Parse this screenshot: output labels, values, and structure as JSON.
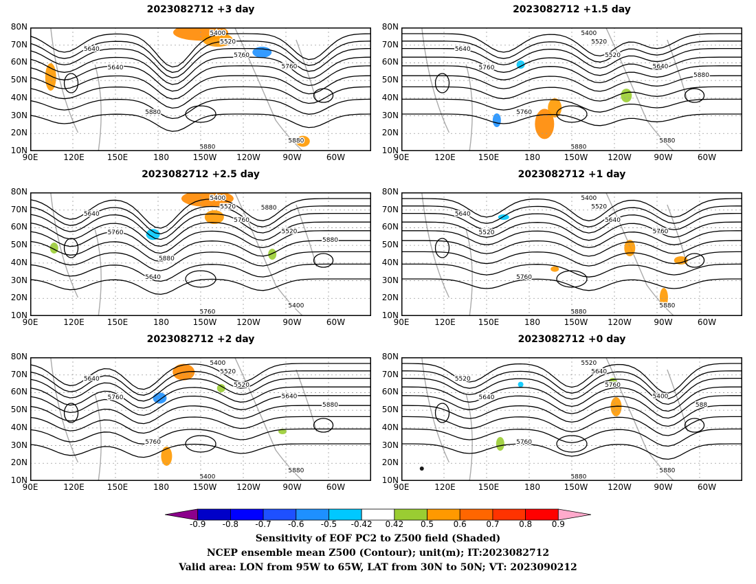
{
  "lat_labels": [
    "80N",
    "70N",
    "60N",
    "50N",
    "40N",
    "30N",
    "20N",
    "10N"
  ],
  "lon_labels": [
    "90E",
    "120E",
    "150E",
    "180",
    "150W",
    "120W",
    "90W",
    "60W"
  ],
  "panels": [
    {
      "title": "2023082712 +3 day",
      "contours": [
        "5400",
        "5520",
        "5640",
        "5640",
        "5760",
        "5760",
        "5880",
        "5880",
        "5880"
      ]
    },
    {
      "title": "2023082712 +1.5 day",
      "contours": [
        "5400",
        "5520",
        "5640",
        "5760",
        "5520",
        "5640",
        "5760",
        "5880",
        "5880",
        "5880"
      ]
    },
    {
      "title": "2023082712 +2.5 day",
      "contours": [
        "5400",
        "5520",
        "5640",
        "5760",
        "5760",
        "5520",
        "5640",
        "5760",
        "5400",
        "5880",
        "5880",
        "5880"
      ]
    },
    {
      "title": "2023082712 +1 day",
      "contours": [
        "5400",
        "5520",
        "5640",
        "5520",
        "5640",
        "5760",
        "5760",
        "5880",
        "5880"
      ]
    },
    {
      "title": "2023082712 +2 day",
      "contours": [
        "5400",
        "5520",
        "5640",
        "5760",
        "5520",
        "5640",
        "5760",
        "5400",
        "5880",
        "5880"
      ]
    },
    {
      "title": "2023082712 +0 day",
      "contours": [
        "5520",
        "5640",
        "5520",
        "5640",
        "5760",
        "5400",
        "5760",
        "5880",
        "5880",
        "588"
      ]
    }
  ],
  "colorbar": {
    "ticks": [
      "-0.9",
      "-0.8",
      "-0.7",
      "-0.6",
      "-0.5",
      "-0.42",
      "0.42",
      "0.5",
      "0.6",
      "0.7",
      "0.8",
      "0.9"
    ],
    "colors": [
      "#8b008b",
      "#0000c8",
      "#0000ff",
      "#1e50ff",
      "#1e90ff",
      "#00c8ff",
      "#ffffff",
      "#9acd32",
      "#ff9900",
      "#ff6600",
      "#ff3300",
      "#ff0000",
      "#ffaacc"
    ]
  },
  "captions": [
    "Sensitivity of EOF PC2 to Z500 field (Shaded)",
    "NCEP ensemble mean Z500 (Contour); unit(m); IT:2023082712",
    "Valid area: LON from 95W to 65W, LAT from 30N to 50N; VT: 2023090212"
  ]
}
